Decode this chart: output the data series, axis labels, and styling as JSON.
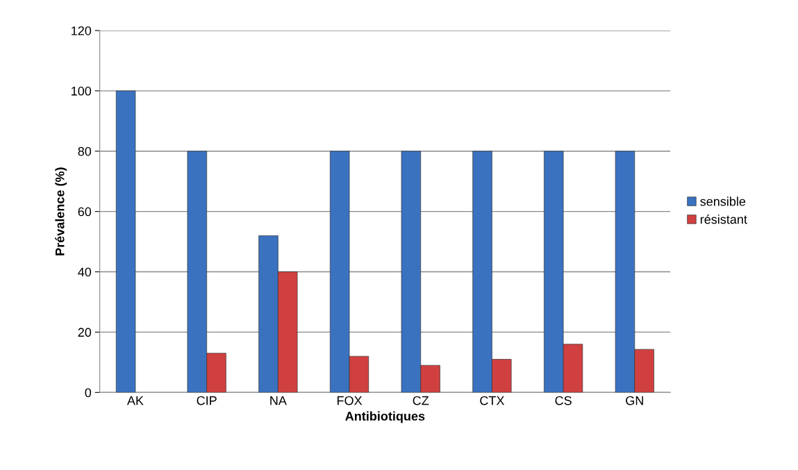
{
  "chart_data": {
    "type": "bar",
    "xlabel": "Antibiotiques",
    "ylabel": "Prévalence (%)",
    "categories": [
      "AK",
      "CIP",
      "NA",
      "FOX",
      "CZ",
      "CTX",
      "CS",
      "GN"
    ],
    "series": [
      {
        "name": "sensible",
        "color": "#3a72c0",
        "values": [
          100,
          80,
          52,
          80,
          80,
          80,
          80,
          80
        ]
      },
      {
        "name": "résistant",
        "color": "#d04040",
        "values": [
          null,
          13,
          40,
          12,
          9,
          11,
          16,
          14.3
        ]
      }
    ],
    "ylim": [
      0,
      120
    ],
    "yticks": [
      0,
      20,
      40,
      60,
      80,
      100,
      120
    ],
    "grid": "y",
    "legend": "right"
  }
}
